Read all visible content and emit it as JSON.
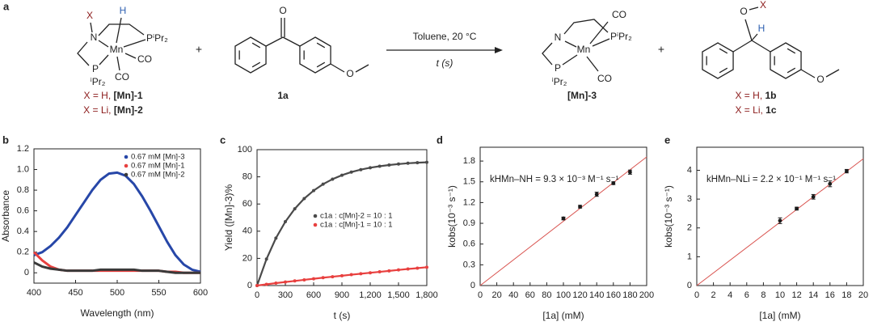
{
  "scheme": {
    "panel": "a",
    "mn1": {
      "atoms": [
        "X",
        "H",
        "N",
        "Mn",
        "PⁱPr₂",
        "P",
        "ⁱPr₂",
        "CO",
        "CO"
      ],
      "labels": [
        [
          "X = H,",
          "[Mn]-1"
        ],
        [
          "X = Li,",
          "[Mn]-2"
        ]
      ]
    },
    "plus": [
      "+",
      "+"
    ],
    "sub": {
      "atoms": [
        "O",
        "O"
      ],
      "label": "1a"
    },
    "arrow": {
      "above": "Toluene, 20 °C",
      "below": "t (s)"
    },
    "mn3": {
      "atoms": [
        "N",
        "Mn",
        "CO",
        "PⁱPr₂",
        "P",
        "ⁱPr₂",
        "CO"
      ],
      "label": "[Mn]-3"
    },
    "prod": {
      "atoms": [
        "O",
        "X",
        "H",
        "O"
      ],
      "labels": [
        [
          "X = H,",
          "1b"
        ],
        [
          "X = Li,",
          "1c"
        ]
      ]
    }
  },
  "chart_data": [
    {
      "type": "line",
      "panel": "b",
      "xlabel": "Wavelength (nm)",
      "ylabel": "Absorbance",
      "x": [
        400,
        410,
        420,
        430,
        440,
        450,
        460,
        470,
        480,
        490,
        500,
        510,
        520,
        530,
        540,
        550,
        560,
        570,
        580,
        590,
        600
      ],
      "series": [
        {
          "name": "0.67 mM [Mn]-3",
          "color": "#2747a8",
          "values": [
            0.17,
            0.2,
            0.26,
            0.34,
            0.44,
            0.56,
            0.68,
            0.8,
            0.9,
            0.96,
            0.97,
            0.94,
            0.86,
            0.74,
            0.6,
            0.45,
            0.3,
            0.17,
            0.08,
            0.03,
            0.01
          ]
        },
        {
          "name": "0.67 mM [Mn]-1",
          "color": "#e8403f",
          "values": [
            0.2,
            0.12,
            0.06,
            0.03,
            0.02,
            0.02,
            0.02,
            0.02,
            0.02,
            0.02,
            0.02,
            0.02,
            0.02,
            0.02,
            0.02,
            0.02,
            0.01,
            0.01,
            0,
            0,
            0
          ]
        },
        {
          "name": "0.67 mM [Mn]-2",
          "color": "#3a3a3a",
          "values": [
            0.1,
            0.06,
            0.04,
            0.03,
            0.02,
            0.02,
            0.02,
            0.02,
            0.03,
            0.03,
            0.03,
            0.03,
            0.03,
            0.02,
            0.02,
            0.02,
            0.01,
            0,
            0,
            0,
            0
          ]
        }
      ],
      "xlim": [
        400,
        600
      ],
      "ylim": [
        -0.1,
        1.2
      ],
      "xticks": [
        400,
        450,
        500,
        550,
        600
      ],
      "yticks": [
        0,
        0.2,
        0.4,
        0.6,
        0.8,
        {
          "value": 1,
          "label": "1.0"
        },
        1.2
      ],
      "legend": "upper right"
    },
    {
      "type": "scatter",
      "panel": "c",
      "xlabel": "t (s)",
      "ylabel": "Yield ([Mn]-3)%",
      "x": [
        0,
        100,
        200,
        300,
        400,
        500,
        600,
        700,
        800,
        900,
        1000,
        1100,
        1200,
        1300,
        1400,
        1500,
        1600,
        1700,
        1800
      ],
      "series": [
        {
          "name": "c1a : c[Mn]-2 = 10 : 1",
          "color": "#4a4a4a",
          "values": [
            0,
            19.5,
            34.9,
            47,
            56.5,
            64,
            69.9,
            74.6,
            78.3,
            81.2,
            83.5,
            85.3,
            86.7,
            87.8,
            88.7,
            89.4,
            90,
            90.4,
            90.7
          ]
        },
        {
          "name": "c1a : c[Mn]-1 = 10 : 1",
          "color": "#e8403f",
          "values": [
            0,
            0.9,
            1.8,
            2.6,
            3.4,
            4.2,
            5,
            5.8,
            6.5,
            7.2,
            8,
            8.7,
            9.4,
            10.1,
            10.8,
            11.5,
            12.2,
            12.8,
            13.5
          ]
        }
      ],
      "xlim": [
        0,
        1800
      ],
      "ylim": [
        0,
        100
      ],
      "xticks": [
        0,
        300,
        600,
        900,
        {
          "value": 1200,
          "label": "1,200"
        },
        {
          "value": 1500,
          "label": "1,500"
        },
        {
          "value": 1800,
          "label": "1,800"
        }
      ],
      "yticks": [
        0,
        20,
        40,
        60,
        80,
        100
      ],
      "legend": "center"
    },
    {
      "type": "scatter",
      "panel": "d",
      "xlabel": "[1a] (mM)",
      "ylabel": "kobs(10⁻³ s⁻¹)",
      "annotation": "kHMn–NH = 9.3 × 10⁻³ M⁻¹ s⁻¹",
      "x": [
        100,
        120,
        140,
        160,
        180
      ],
      "series": [
        {
          "color": "#1a1a1a",
          "values": [
            0.97,
            1.14,
            1.32,
            1.48,
            1.64
          ],
          "errors": [
            0.02,
            0.02,
            0.03,
            0.02,
            0.03
          ]
        }
      ],
      "fit": {
        "color": "#d9534f",
        "x": [
          0,
          200
        ],
        "values": [
          0,
          1.86
        ]
      },
      "xlim": [
        0,
        200
      ],
      "ylim": [
        0,
        2.0
      ],
      "xticks": [
        0,
        20,
        40,
        60,
        80,
        100,
        120,
        140,
        160,
        180,
        200
      ],
      "yticks": [
        0,
        0.3,
        0.6,
        0.9,
        1.2,
        1.5,
        1.8
      ]
    },
    {
      "type": "scatter",
      "panel": "e",
      "xlabel": "[1a] (mM)",
      "ylabel": "kobs(10⁻³ s⁻¹)",
      "annotation": "kHMn–NLi = 2.2 × 10⁻¹ M⁻¹ s⁻¹",
      "x": [
        10,
        12,
        14,
        16,
        18
      ],
      "series": [
        {
          "color": "#1a1a1a",
          "values": [
            2.25,
            2.67,
            3.08,
            3.53,
            3.97
          ],
          "errors": [
            0.1,
            0.05,
            0.08,
            0.1,
            0.06
          ]
        }
      ],
      "fit": {
        "color": "#d9534f",
        "x": [
          0,
          20
        ],
        "values": [
          0,
          4.4
        ]
      },
      "xlim": [
        0,
        20
      ],
      "ylim": [
        0,
        4.8
      ],
      "xticks": [
        0,
        2,
        4,
        6,
        8,
        10,
        12,
        14,
        16,
        18,
        20
      ],
      "yticks": [
        0,
        1,
        2,
        3,
        4
      ]
    }
  ]
}
